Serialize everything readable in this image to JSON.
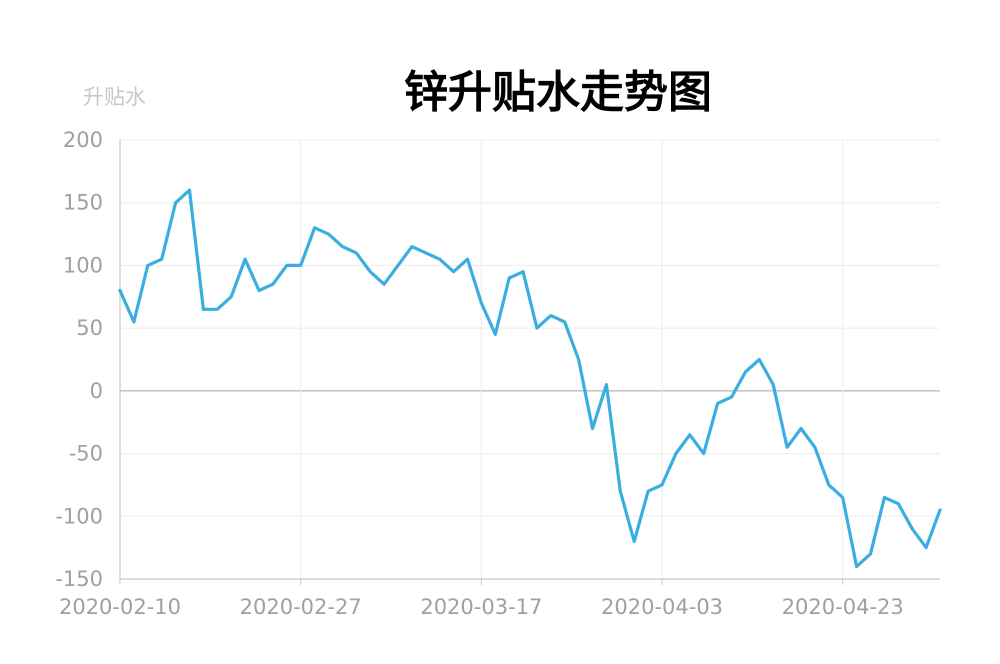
{
  "chart_data": {
    "type": "line",
    "title": "锌升贴水走势图",
    "ylabel": "升贴水",
    "xlabel": "",
    "ylim": [
      -150,
      200
    ],
    "y_ticks": [
      "200",
      "150",
      "100",
      "50",
      "0",
      "-50",
      "-100",
      "-150"
    ],
    "x_tick_labels": [
      "2020-02-10",
      "2020-02-27",
      "2020-03-17",
      "2020-04-03",
      "2020-04-23"
    ],
    "x_tick_indices": [
      0,
      13,
      26,
      39,
      52
    ],
    "grid": true,
    "zero_line": true,
    "line_color": "#3aaee0",
    "series": [
      {
        "values": [
          80,
          55,
          100,
          105,
          150,
          160,
          65,
          65,
          75,
          105,
          80,
          85,
          100,
          100,
          130,
          125,
          115,
          110,
          95,
          85,
          100,
          115,
          110,
          105,
          95,
          105,
          70,
          45,
          90,
          95,
          50,
          60,
          55,
          25,
          -30,
          5,
          -80,
          -120,
          -80,
          -75,
          -50,
          -35,
          -50,
          -10,
          -5,
          15,
          25,
          5,
          -45,
          -30,
          -45,
          -75,
          -85,
          -140,
          -130,
          -85,
          -90,
          -110,
          -125,
          -95
        ]
      }
    ]
  }
}
